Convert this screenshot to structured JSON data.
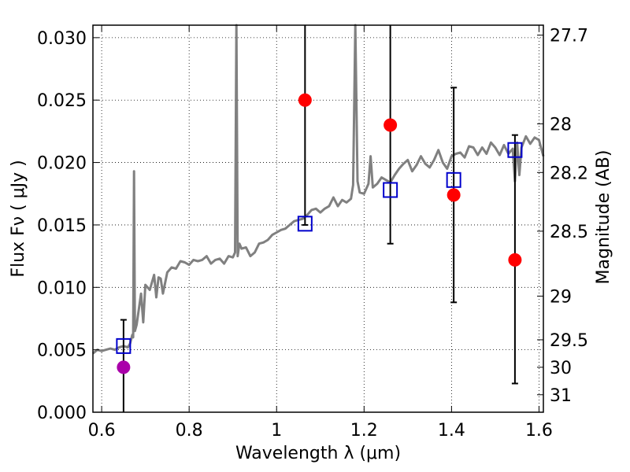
{
  "chart_data": {
    "type": "scatter",
    "title": "",
    "xlabel": "Wavelength  λ (μm)",
    "ylabel": "Flux  Fν  ( μJy )",
    "y2label": "Magnitude (AB)",
    "xlim": [
      0.58,
      1.61
    ],
    "ylim": [
      0.0,
      0.031
    ],
    "grid": true,
    "x_ticks": [
      0.6,
      0.8,
      1.0,
      1.2,
      1.4,
      1.6
    ],
    "x_tick_labels": [
      "0.6",
      "0.8",
      "1",
      "1.2",
      "1.4",
      "1.6"
    ],
    "y_ticks": [
      0.0,
      0.005,
      0.01,
      0.015,
      0.02,
      0.025,
      0.03
    ],
    "y_tick_labels": [
      "0.000",
      "0.005",
      "0.010",
      "0.015",
      "0.020",
      "0.025",
      "0.030"
    ],
    "y2_ticks": [
      {
        "label": "27.7",
        "flux": 0.0302
      },
      {
        "label": "28",
        "flux": 0.0231
      },
      {
        "label": "28.2",
        "flux": 0.0192
      },
      {
        "label": "28.5",
        "flux": 0.0145
      },
      {
        "label": "29",
        "flux": 0.0093
      },
      {
        "label": "29.5",
        "flux": 0.0058
      },
      {
        "label": "30",
        "flux": 0.0036
      },
      {
        "label": "31",
        "flux": 0.0014
      }
    ],
    "series": [
      {
        "kind": "line",
        "color": "#808080",
        "x": [
          0.58,
          0.59,
          0.6,
          0.61,
          0.62,
          0.63,
          0.64,
          0.65,
          0.66,
          0.665,
          0.67,
          0.672,
          0.674,
          0.676,
          0.68,
          0.69,
          0.695,
          0.7,
          0.71,
          0.72,
          0.725,
          0.73,
          0.735,
          0.74,
          0.75,
          0.76,
          0.77,
          0.78,
          0.79,
          0.8,
          0.81,
          0.82,
          0.83,
          0.84,
          0.85,
          0.86,
          0.87,
          0.88,
          0.89,
          0.9,
          0.905,
          0.908,
          0.911,
          0.915,
          0.92,
          0.93,
          0.94,
          0.95,
          0.96,
          0.97,
          0.98,
          0.99,
          1.0,
          1.01,
          1.02,
          1.03,
          1.04,
          1.05,
          1.06,
          1.07,
          1.08,
          1.09,
          1.1,
          1.11,
          1.12,
          1.13,
          1.14,
          1.15,
          1.16,
          1.17,
          1.175,
          1.18,
          1.185,
          1.19,
          1.2,
          1.21,
          1.215,
          1.22,
          1.23,
          1.24,
          1.25,
          1.26,
          1.27,
          1.28,
          1.29,
          1.3,
          1.31,
          1.32,
          1.33,
          1.34,
          1.35,
          1.36,
          1.37,
          1.38,
          1.39,
          1.4,
          1.41,
          1.42,
          1.43,
          1.44,
          1.45,
          1.46,
          1.47,
          1.48,
          1.49,
          1.5,
          1.51,
          1.52,
          1.53,
          1.54,
          1.545,
          1.55,
          1.555,
          1.56,
          1.57,
          1.58,
          1.59,
          1.6,
          1.61
        ],
        "y": [
          0.0047,
          0.005,
          0.0049,
          0.005,
          0.0051,
          0.005,
          0.0052,
          0.0053,
          0.0052,
          0.0055,
          0.0062,
          0.006,
          0.0193,
          0.0065,
          0.007,
          0.0095,
          0.0072,
          0.0102,
          0.0098,
          0.011,
          0.0092,
          0.0108,
          0.0107,
          0.0095,
          0.0112,
          0.0116,
          0.0115,
          0.0121,
          0.012,
          0.0118,
          0.0122,
          0.0121,
          0.0122,
          0.0125,
          0.0119,
          0.0122,
          0.0123,
          0.0119,
          0.0125,
          0.0124,
          0.0128,
          0.0318,
          0.0125,
          0.0135,
          0.0131,
          0.0132,
          0.0125,
          0.0128,
          0.0135,
          0.0136,
          0.0138,
          0.0142,
          0.0144,
          0.0146,
          0.0147,
          0.015,
          0.0153,
          0.0154,
          0.0155,
          0.0158,
          0.0162,
          0.0163,
          0.016,
          0.0163,
          0.0165,
          0.0172,
          0.0165,
          0.017,
          0.0168,
          0.0171,
          0.0182,
          0.0318,
          0.0185,
          0.0176,
          0.0175,
          0.0183,
          0.0205,
          0.018,
          0.0183,
          0.0188,
          0.0186,
          0.0184,
          0.019,
          0.0195,
          0.0199,
          0.0202,
          0.0193,
          0.0198,
          0.0205,
          0.0199,
          0.0196,
          0.0202,
          0.021,
          0.02,
          0.0195,
          0.0205,
          0.0207,
          0.0208,
          0.0204,
          0.0213,
          0.0212,
          0.0206,
          0.0212,
          0.0207,
          0.0216,
          0.0212,
          0.0206,
          0.0214,
          0.0207,
          0.0211,
          0.0185,
          0.0216,
          0.019,
          0.0212,
          0.0221,
          0.0215,
          0.022,
          0.0218,
          0.0205
        ]
      },
      {
        "kind": "open-square",
        "color": "#0000cc",
        "x": [
          0.65,
          1.065,
          1.26,
          1.405,
          1.545
        ],
        "y": [
          0.0053,
          0.0151,
          0.0178,
          0.0186,
          0.021
        ]
      },
      {
        "kind": "filled-circle-errorbar",
        "color": "#ff0000",
        "x": [
          1.065,
          1.26,
          1.405,
          1.545
        ],
        "y": [
          0.025,
          0.023,
          0.0174,
          0.0122
        ],
        "err_low": [
          0.015,
          0.0135,
          0.0088,
          0.0023
        ],
        "err_high": [
          0.0318,
          0.0318,
          0.026,
          0.0222
        ]
      },
      {
        "kind": "filled-circle-errorbar",
        "color": "#aa00aa",
        "x": [
          0.65
        ],
        "y": [
          0.0036
        ],
        "err_low": [
          0.0
        ],
        "err_high": [
          0.0074
        ]
      }
    ]
  }
}
